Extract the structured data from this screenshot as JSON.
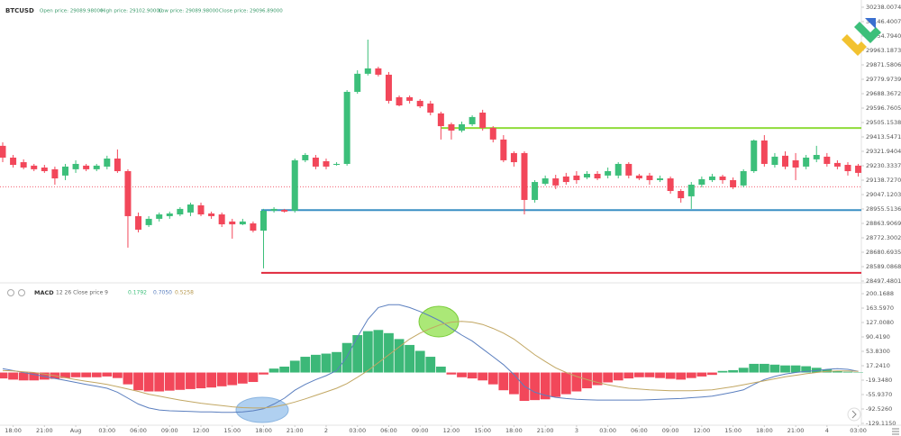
{
  "chart_data": [
    {
      "type": "candlestick",
      "title": "BTCUSD",
      "legend_items": [
        "Open price: 29089.98000",
        "High price: 29102.90000",
        "Low price: 29089.98000",
        "Close price: 29096.89000"
      ],
      "open": [
        29357,
        29282,
        29253,
        29231,
        29219,
        29208,
        29168,
        29208,
        29231,
        29208,
        29225,
        29276,
        29196,
        28910,
        28853,
        28893,
        28910,
        28921,
        28933,
        28979,
        28927,
        28921,
        28876,
        28858,
        28864,
        28818,
        28944,
        28950,
        28944,
        29265,
        29282,
        29259,
        29236,
        29242,
        29700,
        29815,
        29849,
        29809,
        29666,
        29666,
        29643,
        29626,
        29563,
        29494,
        29454,
        29494,
        29568,
        29471,
        29397,
        29311,
        29311,
        29013,
        29116,
        29150,
        29162,
        29168,
        29156,
        29179,
        29168,
        29168,
        29242,
        29168,
        29168,
        29139,
        29150,
        29070,
        29036,
        29110,
        29139,
        29162,
        29139,
        29105,
        29196,
        29391,
        29236,
        29294,
        29265,
        29225,
        29271,
        29288,
        29248,
        29236,
        29231
      ],
      "high": [
        29379,
        29299,
        29271,
        29242,
        29236,
        29225,
        29242,
        29265,
        29242,
        29242,
        29294,
        29334,
        29208,
        28933,
        28910,
        28933,
        28939,
        28967,
        28996,
        28996,
        28939,
        28933,
        28893,
        28893,
        28876,
        28956,
        28967,
        28956,
        29276,
        29311,
        29299,
        29276,
        29253,
        29711,
        29837,
        30032,
        29860,
        29826,
        29677,
        29677,
        29654,
        29643,
        29574,
        29505,
        29511,
        29551,
        29586,
        29482,
        29425,
        29322,
        29322,
        29139,
        29168,
        29173,
        29185,
        29196,
        29196,
        29196,
        29219,
        29253,
        29253,
        29179,
        29185,
        29168,
        29162,
        29082,
        29127,
        29162,
        29179,
        29173,
        29156,
        29208,
        29397,
        29425,
        29311,
        29322,
        29311,
        29299,
        29357,
        29311,
        29265,
        29253,
        29242
      ],
      "low": [
        29253,
        29219,
        29208,
        29196,
        29185,
        29110,
        29139,
        29185,
        29196,
        29196,
        29208,
        29185,
        28710,
        28807,
        28841,
        28876,
        28893,
        28910,
        28910,
        28910,
        28893,
        28841,
        28767,
        28853,
        28807,
        28578,
        28933,
        28933,
        28933,
        29253,
        29208,
        29208,
        29231,
        29231,
        29688,
        29804,
        29798,
        29626,
        29608,
        29626,
        29597,
        29551,
        29397,
        29397,
        29443,
        29482,
        29454,
        29379,
        29253,
        29225,
        28921,
        28996,
        29105,
        29082,
        29110,
        29116,
        29145,
        29139,
        29150,
        29150,
        29150,
        29139,
        29110,
        29127,
        29053,
        28996,
        28956,
        29093,
        29127,
        29116,
        29082,
        29093,
        29185,
        29225,
        29219,
        29208,
        29139,
        29208,
        29253,
        29225,
        29208,
        29168,
        29162
      ],
      "close": [
        29282,
        29236,
        29219,
        29208,
        29196,
        29150,
        29225,
        29242,
        29208,
        29231,
        29276,
        29196,
        28910,
        28824,
        28893,
        28921,
        28927,
        28956,
        28984,
        28921,
        28910,
        28858,
        28858,
        28876,
        28818,
        28944,
        28956,
        28939,
        29265,
        29299,
        29225,
        29225,
        29242,
        29700,
        29815,
        29849,
        29809,
        29643,
        29614,
        29643,
        29608,
        29568,
        29482,
        29454,
        29494,
        29540,
        29471,
        29397,
        29265,
        29253,
        29013,
        29127,
        29150,
        29105,
        29127,
        29139,
        29179,
        29150,
        29196,
        29242,
        29168,
        29150,
        29139,
        29150,
        29070,
        29024,
        29110,
        29145,
        29162,
        29139,
        29093,
        29196,
        29391,
        29242,
        29288,
        29225,
        29219,
        29282,
        29299,
        29242,
        29225,
        29196,
        29185
      ],
      "up_color": "#3cbf7a",
      "down_color": "#f2475a",
      "xticks": [
        {
          "value": 1,
          "label": "18:00"
        },
        {
          "value": 4,
          "label": "21:00"
        },
        {
          "value": 7,
          "label": "Aug"
        },
        {
          "value": 10,
          "label": "03:00"
        },
        {
          "value": 13,
          "label": "06:00"
        },
        {
          "value": 16,
          "label": "09:00"
        },
        {
          "value": 19,
          "label": "12:00"
        },
        {
          "value": 22,
          "label": "15:00"
        },
        {
          "value": 25,
          "label": "18:00"
        },
        {
          "value": 28,
          "label": "21:00"
        },
        {
          "value": 31,
          "label": "2"
        },
        {
          "value": 34,
          "label": "03:00"
        },
        {
          "value": 37,
          "label": "06:00"
        },
        {
          "value": 40,
          "label": "09:00"
        },
        {
          "value": 43,
          "label": "12:00"
        },
        {
          "value": 46,
          "label": "15:00"
        },
        {
          "value": 49,
          "label": "18:00"
        },
        {
          "value": 52,
          "label": "21:00"
        },
        {
          "value": 55,
          "label": "3"
        },
        {
          "value": 58,
          "label": "03:00"
        },
        {
          "value": 61,
          "label": "06:00"
        },
        {
          "value": 64,
          "label": "09:00"
        },
        {
          "value": 67,
          "label": "12:00"
        },
        {
          "value": 70,
          "label": "15:00"
        },
        {
          "value": 73,
          "label": "18:00"
        },
        {
          "value": 76,
          "label": "21:00"
        },
        {
          "value": 79,
          "label": "4"
        },
        {
          "value": 82,
          "label": "03:00"
        }
      ],
      "ylim": [
        28497.48,
        30283.81
      ],
      "yticks": [
        {
          "value": 30238.0074,
          "label": "30238.00740"
        },
        {
          "value": 30146.4007,
          "label": "30146.40070"
        },
        {
          "value": 30054.794,
          "label": "30054.79400"
        },
        {
          "value": 29963.1873,
          "label": "29963.18730"
        },
        {
          "value": 29871.5806,
          "label": "29871.58060"
        },
        {
          "value": 29779.9739,
          "label": "29779.97390"
        },
        {
          "value": 29688.3672,
          "label": "29688.36720"
        },
        {
          "value": 29596.7605,
          "label": "29596.76050"
        },
        {
          "value": 29505.1538,
          "label": "29505.15380"
        },
        {
          "value": 29413.5471,
          "label": "29413.54710"
        },
        {
          "value": 29321.9404,
          "label": "29321.94040"
        },
        {
          "value": 29230.3337,
          "label": "29230.33370"
        },
        {
          "value": 29138.727,
          "label": "29138.72700"
        },
        {
          "value": 29047.1203,
          "label": "29047.12030"
        },
        {
          "value": 28955.5136,
          "label": "28955.51360"
        },
        {
          "value": 28863.9069,
          "label": "28863.90690"
        },
        {
          "value": 28772.3002,
          "label": "28772.30020"
        },
        {
          "value": 28680.6935,
          "label": "28680.69350"
        },
        {
          "value": 28589.0868,
          "label": "28589.08680"
        },
        {
          "value": 28497.4801,
          "label": "28497.48010"
        }
      ],
      "levels": [
        {
          "value": 29470,
          "color": "#8fdc3a"
        },
        {
          "value": 28948,
          "color": "#3a8fc4"
        },
        {
          "value": 28550,
          "color": "#e0283c"
        }
      ],
      "current_price": 29096.89
    },
    {
      "type": "macd",
      "title": "MACD",
      "parameters": "12 26 Close price 9",
      "header_values": [
        {
          "text": "0.1792",
          "color": "#3cbf7a"
        },
        {
          "text": "0.7050",
          "color": "#5b7fbf"
        },
        {
          "text": "0.5258",
          "color": "#b89a50"
        }
      ],
      "histogram": [
        -15,
        -18,
        -20,
        -20,
        -18,
        -16,
        -14,
        -12,
        -12,
        -12,
        -10,
        -14,
        -30,
        -45,
        -48,
        -48,
        -46,
        -44,
        -42,
        -40,
        -38,
        -35,
        -32,
        -28,
        -24,
        -5,
        10,
        15,
        30,
        40,
        45,
        48,
        52,
        75,
        95,
        105,
        108,
        100,
        85,
        70,
        55,
        40,
        15,
        -5,
        -12,
        -15,
        -20,
        -30,
        -45,
        -55,
        -72,
        -70,
        -68,
        -62,
        -55,
        -48,
        -40,
        -32,
        -25,
        -20,
        -15,
        -12,
        -12,
        -14,
        -16,
        -18,
        -14,
        -10,
        -6,
        4,
        6,
        12,
        22,
        22,
        20,
        18,
        18,
        16,
        12,
        8,
        4,
        2,
        1
      ],
      "up_color": "#3cb878",
      "down_color": "#f2475a",
      "series": [
        {
          "color": "#5b7fbf",
          "values": [
            10,
            5,
            0,
            -5,
            -10,
            -15,
            -20,
            -25,
            -30,
            -35,
            -40,
            -50,
            -65,
            -80,
            -90,
            -95,
            -97,
            -98,
            -99,
            -100,
            -100,
            -101,
            -101,
            -100,
            -97,
            -92,
            -80,
            -65,
            -45,
            -30,
            -18,
            -8,
            5,
            40,
            90,
            135,
            165,
            172,
            172,
            165,
            155,
            143,
            130,
            112,
            95,
            80,
            60,
            40,
            20,
            -5,
            -35,
            -50,
            -58,
            -63,
            -66,
            -68,
            -69,
            -70,
            -70,
            -70,
            -70,
            -70,
            -69,
            -68,
            -67,
            -66,
            -64,
            -62,
            -60,
            -55,
            -50,
            -44,
            -30,
            -18,
            -10,
            -4,
            0,
            3,
            5,
            8,
            10,
            8,
            3
          ]
        },
        {
          "color": "#c2a763",
          "values": [
            5,
            4,
            2,
            0,
            -4,
            -8,
            -13,
            -18,
            -22,
            -26,
            -30,
            -36,
            -42,
            -48,
            -55,
            -60,
            -65,
            -70,
            -74,
            -78,
            -81,
            -84,
            -87,
            -89,
            -90,
            -90,
            -87,
            -82,
            -75,
            -67,
            -58,
            -49,
            -40,
            -28,
            -12,
            5,
            25,
            45,
            65,
            85,
            100,
            112,
            122,
            128,
            130,
            128,
            122,
            112,
            100,
            85,
            65,
            45,
            28,
            12,
            0,
            -10,
            -18,
            -25,
            -31,
            -36,
            -40,
            -42,
            -44,
            -45,
            -46,
            -46,
            -46,
            -45,
            -44,
            -40,
            -36,
            -31,
            -26,
            -21,
            -16,
            -11,
            -7,
            -3,
            0,
            3,
            4,
            4,
            3
          ]
        }
      ],
      "ylim": [
        218.48,
        -129.115
      ],
      "yticks": [
        200.1688,
        {
          "value": 163.597,
          "label": "163.5970"
        },
        {
          "value": 127.008,
          "label": "127.0080"
        },
        {
          "value": 90.419,
          "label": "90.4190"
        },
        {
          "value": 53.83,
          "label": "53.8300"
        },
        {
          "value": 17.241,
          "label": "17.2410"
        },
        {
          "value": -19.348,
          "label": "-19.3480"
        },
        {
          "value": -55.937,
          "label": "-55.9370"
        },
        {
          "value": -92.526,
          "label": "-92.5260"
        },
        {
          "value": -129.115,
          "label": "-129.1150"
        }
      ]
    }
  ]
}
